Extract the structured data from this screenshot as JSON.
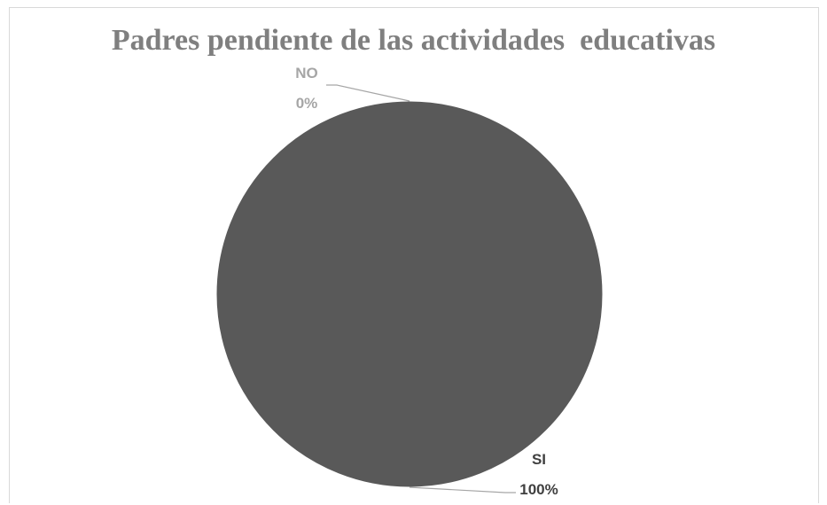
{
  "chart_data": {
    "type": "pie",
    "title": "Padres pendiente de las actividades  educativas",
    "slices": [
      {
        "label": "NO",
        "value": 0,
        "value_label": "0%",
        "color": "#a6a6a6"
      },
      {
        "label": "SI",
        "value": 100,
        "value_label": "100%",
        "color": "#595959"
      }
    ],
    "legend": "none",
    "data_labels": "outside-with-leader-lines"
  }
}
